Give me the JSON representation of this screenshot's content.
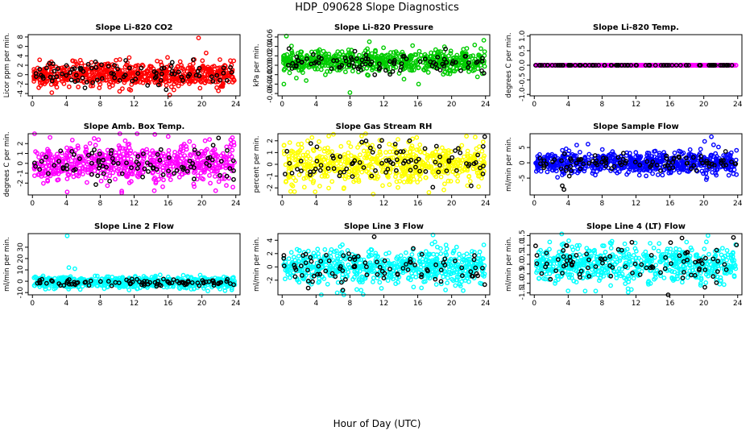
{
  "title": "HDP_090628  Slope Diagnostics",
  "xlabel": "Hour of Day (UTC)",
  "chart_data": [
    {
      "type": "scatter",
      "title": "Slope Li-820 CO2",
      "ylabel": "Licor ppm per min.",
      "color": "#ff0000",
      "xlim": [
        -0.5,
        24.5
      ],
      "xticks": [
        0,
        4,
        8,
        12,
        16,
        20,
        24
      ],
      "ylim": [
        -4.5,
        8.5
      ],
      "yticks": [
        -4,
        -2,
        0,
        2,
        4,
        6,
        8
      ],
      "series": [
        {
          "color": "#ff0000",
          "n": 620,
          "center": 0,
          "spread": 1.3,
          "outliers": [
            [
              19.6,
              7.8
            ],
            [
              20.5,
              4.6
            ],
            [
              16.2,
              -4.3
            ]
          ]
        },
        {
          "color": "#000000",
          "n": 90,
          "center": 0.3,
          "spread": 1.2,
          "outliers": []
        }
      ]
    },
    {
      "type": "scatter",
      "title": "Slope Li-820 Pressure",
      "ylabel": "kPa per min.",
      "color": "#00cc00",
      "xlim": [
        -0.5,
        24.5
      ],
      "xticks": [
        0,
        4,
        8,
        12,
        16,
        20,
        24
      ],
      "ylim": [
        -0.065,
        0.065
      ],
      "yticks": [
        -0.06,
        -0.04,
        -0.02,
        0.0,
        0.02,
        0.04,
        0.06
      ],
      "series": [
        {
          "color": "#00cc00",
          "n": 620,
          "center": 0.008,
          "spread": 0.012,
          "outliers": [
            [
              0.5,
              0.062
            ],
            [
              0.2,
              -0.04
            ],
            [
              8.0,
              -0.058
            ],
            [
              16.1,
              -0.04
            ],
            [
              23.8,
              0.053
            ]
          ]
        },
        {
          "color": "#000000",
          "n": 90,
          "center": 0.008,
          "spread": 0.011,
          "outliers": []
        }
      ]
    },
    {
      "type": "scatter",
      "title": "Slope Li-820 Temp.",
      "ylabel": "degrees C per min.",
      "color": "#ff00ff",
      "xlim": [
        -0.5,
        24.5
      ],
      "xticks": [
        0,
        4,
        8,
        12,
        16,
        20,
        24
      ],
      "ylim": [
        -1.05,
        1.05
      ],
      "yticks": [
        -1.0,
        -0.5,
        0.0,
        0.5,
        1.0
      ],
      "series": [
        {
          "color": "#ff00ff",
          "n": 620,
          "center": 0,
          "spread": 0,
          "outliers": []
        },
        {
          "color": "#000000",
          "n": 90,
          "center": 0,
          "spread": 0,
          "outliers": []
        }
      ]
    },
    {
      "type": "scatter",
      "title": "Slope Amb. Box Temp.",
      "ylabel": "degrees C per min.",
      "color": "#ff00ff",
      "xlim": [
        -0.5,
        24.5
      ],
      "xticks": [
        0,
        4,
        8,
        12,
        16,
        20,
        24
      ],
      "ylim": [
        -3.2,
        3.0
      ],
      "yticks": [
        -2,
        -1,
        0,
        1,
        2
      ],
      "series": [
        {
          "color": "#ff00ff",
          "n": 620,
          "center": 0,
          "spread": 1.0,
          "outliers": [
            [
              4.1,
              -2.9
            ],
            [
              23.6,
              2.6
            ],
            [
              7.8,
              2.4
            ]
          ]
        },
        {
          "color": "#000000",
          "n": 90,
          "center": 0,
          "spread": 0.8,
          "outliers": []
        }
      ]
    },
    {
      "type": "scatter",
      "title": "Slope Gas Stream RH",
      "ylabel": "percent per min.",
      "color": "#ffff00",
      "xlim": [
        -0.5,
        24.5
      ],
      "xticks": [
        0,
        4,
        8,
        12,
        16,
        20,
        24
      ],
      "ylim": [
        -2.6,
        2.6
      ],
      "yticks": [
        -2,
        -1,
        0,
        1,
        2
      ],
      "series": [
        {
          "color": "#ffff00",
          "n": 620,
          "center": 0,
          "spread": 0.9,
          "outliers": [
            [
              1.0,
              -2.3
            ],
            [
              5.5,
              2.4
            ]
          ]
        },
        {
          "color": "#000000",
          "n": 90,
          "center": 0.2,
          "spread": 0.9,
          "outliers": []
        }
      ]
    },
    {
      "type": "scatter",
      "title": "Slope Sample Flow",
      "ylabel": "ml/min per min.",
      "color": "#0000ff",
      "xlim": [
        -0.5,
        24.5
      ],
      "xticks": [
        0,
        4,
        8,
        12,
        16,
        20,
        24
      ],
      "ylim": [
        -10.5,
        9.5
      ],
      "yticks": [
        -5,
        0,
        5
      ],
      "series": [
        {
          "color": "#0000ff",
          "n": 620,
          "center": 0,
          "spread": 1.8,
          "outliers": [
            [
              20.9,
              8.5
            ],
            [
              20.1,
              7.0
            ],
            [
              5.0,
              5.8
            ],
            [
              20.3,
              -5.5
            ]
          ]
        },
        {
          "color": "#000000",
          "n": 90,
          "center": 0,
          "spread": 1.4,
          "outliers": [
            [
              3.3,
              -7.5
            ],
            [
              3.5,
              -8.7
            ]
          ]
        }
      ]
    },
    {
      "type": "scatter",
      "title": "Slope Line 2 Flow",
      "ylabel": "ml/min per min.",
      "color": "#00ffff",
      "xlim": [
        -0.5,
        24.5
      ],
      "xticks": [
        0,
        4,
        8,
        12,
        16,
        20,
        24
      ],
      "ylim": [
        -12,
        42
      ],
      "yticks": [
        -10,
        0,
        10,
        20,
        30
      ],
      "series": [
        {
          "color": "#00ffff",
          "n": 620,
          "center": -1,
          "spread": 2.5,
          "outliers": [
            [
              4.1,
              40
            ],
            [
              4.3,
              12
            ],
            [
              5.0,
              11
            ]
          ]
        },
        {
          "color": "#000000",
          "n": 90,
          "center": -1,
          "spread": 1.8,
          "outliers": []
        }
      ]
    },
    {
      "type": "scatter",
      "title": "Slope Line 3 Flow",
      "ylabel": "ml/min per min.",
      "color": "#00ffff",
      "xlim": [
        -0.5,
        24.5
      ],
      "xticks": [
        0,
        4,
        8,
        12,
        16,
        20,
        24
      ],
      "ylim": [
        -4.2,
        5.0
      ],
      "yticks": [
        -2,
        0,
        2,
        4
      ],
      "series": [
        {
          "color": "#00ffff",
          "n": 620,
          "center": 0,
          "spread": 1.3,
          "outliers": [
            [
              17.8,
              4.8
            ],
            [
              6.5,
              -3.9
            ]
          ]
        },
        {
          "color": "#000000",
          "n": 90,
          "center": 0,
          "spread": 1.2,
          "outliers": []
        }
      ]
    },
    {
      "type": "scatter",
      "title": "Slope Line 4 (LT) Flow",
      "ylabel": "ml/min per min.",
      "color": "#00ffff",
      "xlim": [
        -0.5,
        24.5
      ],
      "xticks": [
        0,
        4,
        8,
        12,
        16,
        20,
        24
      ],
      "ylim": [
        -1.6,
        1.6
      ],
      "yticks": [
        -1.5,
        -1.0,
        -0.5,
        0.0,
        0.5,
        1.0,
        1.5
      ],
      "series": [
        {
          "color": "#00ffff",
          "n": 620,
          "center": 0,
          "spread": 0.5,
          "outliers": [
            [
              6.0,
              -1.4
            ],
            [
              20.5,
              1.5
            ]
          ]
        },
        {
          "color": "#000000",
          "n": 90,
          "center": 0,
          "spread": 0.5,
          "outliers": [
            [
              23.5,
              1.4
            ]
          ]
        }
      ]
    }
  ]
}
